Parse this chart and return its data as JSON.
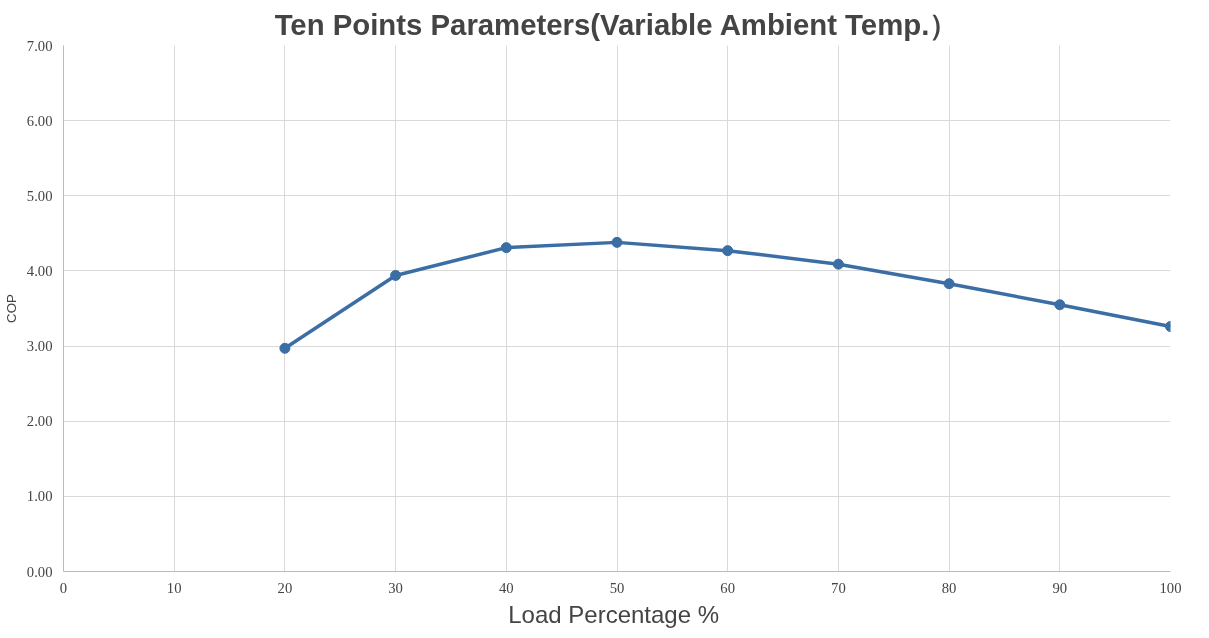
{
  "chart_data": {
    "type": "line",
    "title": "Ten Points Parameters(Variable Ambient Temp.）",
    "xlabel": "Load Percentage  %",
    "ylabel": "COP",
    "x": [
      20,
      30,
      40,
      50,
      60,
      70,
      80,
      90,
      100
    ],
    "series": [
      {
        "color": "#3b6ea5",
        "values": [
          2.97,
          3.94,
          4.31,
          4.38,
          4.27,
          4.09,
          3.83,
          3.55,
          3.26
        ]
      }
    ],
    "xlim": [
      0,
      100
    ],
    "xticks": [
      0,
      10,
      20,
      30,
      40,
      50,
      60,
      70,
      80,
      90,
      100
    ],
    "ylim": [
      0,
      7
    ],
    "yticks": [
      {
        "value": 0,
        "label": "0.00"
      },
      {
        "value": 1,
        "label": "1.00"
      },
      {
        "value": 2,
        "label": "2.00"
      },
      {
        "value": 3,
        "label": "3.00"
      },
      {
        "value": 4,
        "label": "4.00"
      },
      {
        "value": 5,
        "label": "5.00"
      },
      {
        "value": 6,
        "label": "6.00"
      },
      {
        "value": 7,
        "label": "7.00"
      }
    ],
    "grid": true,
    "marker": "circle",
    "line_style": "solid"
  }
}
